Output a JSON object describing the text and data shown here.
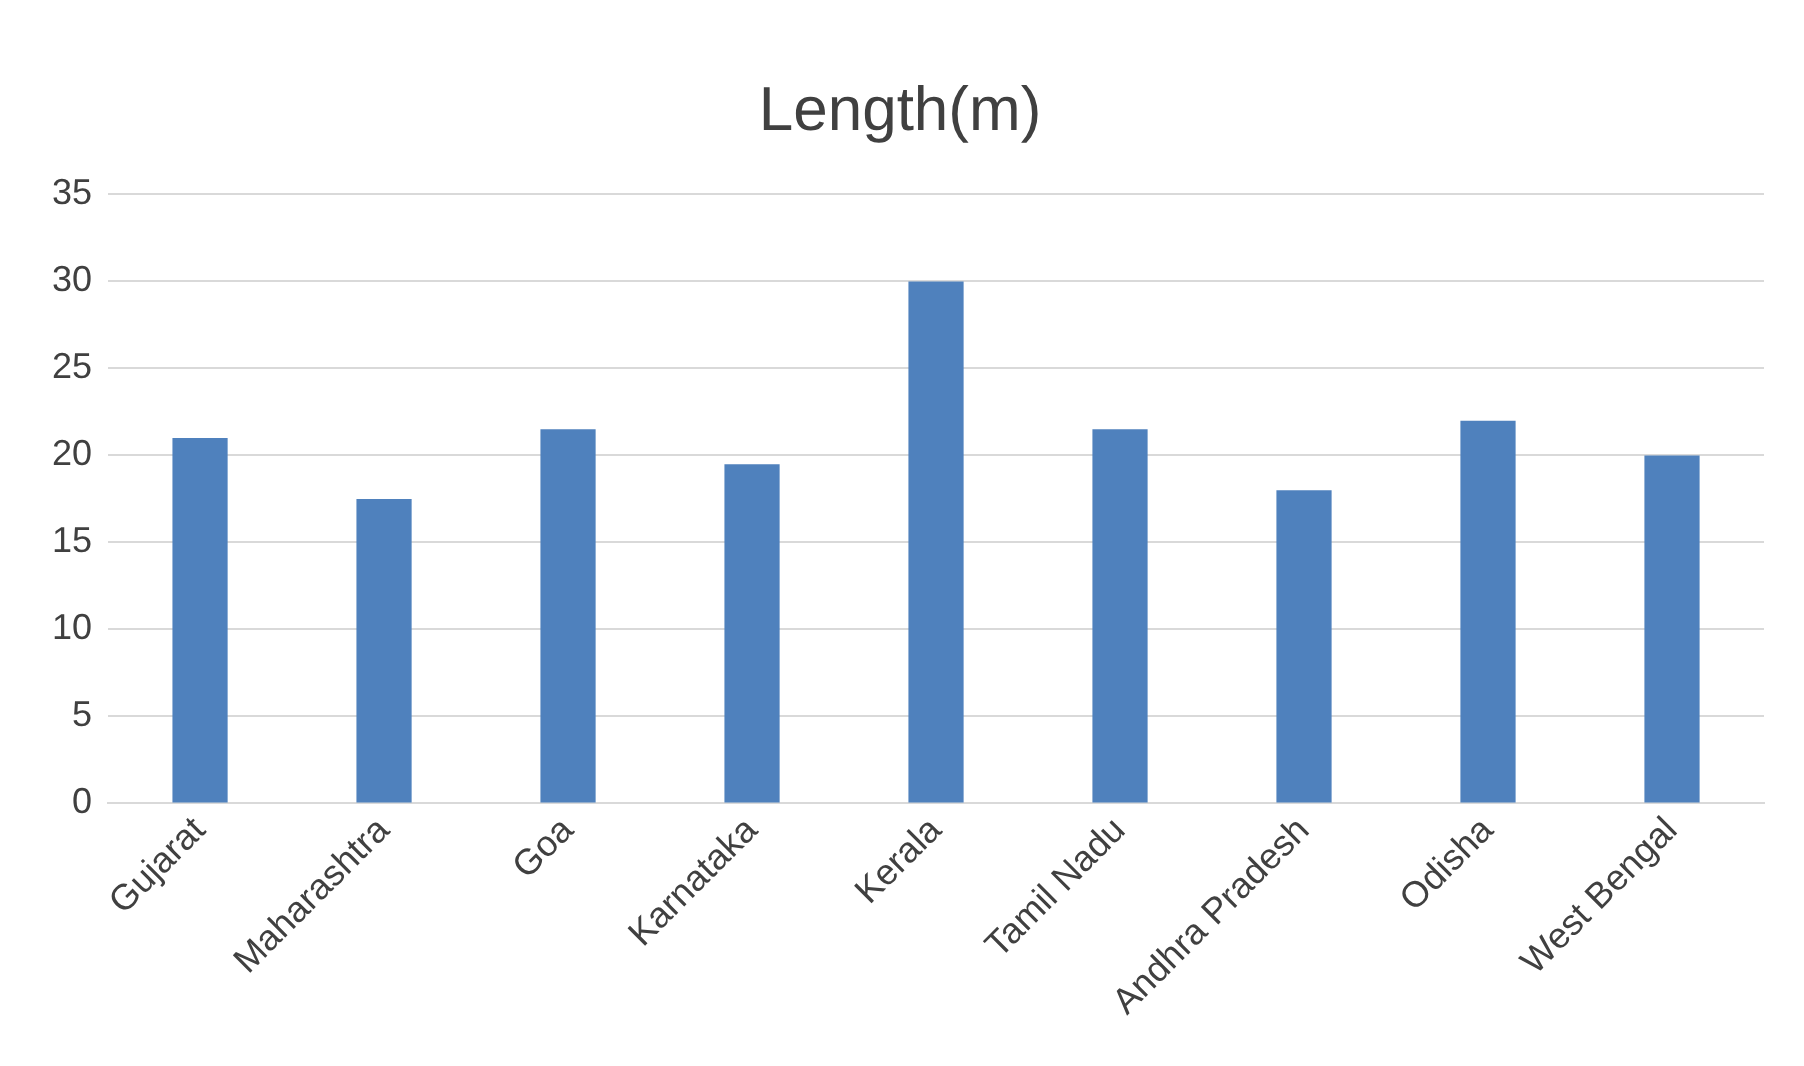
{
  "chart_data": {
    "type": "bar",
    "title": "Length(m)",
    "categories": [
      "Gujarat",
      "Maharashtra",
      "Goa",
      "Karnataka",
      "Kerala",
      "Tamil Nadu",
      "Andhra Pradesh",
      "Odisha",
      "West Bengal"
    ],
    "values": [
      21,
      17.5,
      21.5,
      19.5,
      30,
      21.5,
      18,
      22,
      20
    ],
    "color": "#4f81bd",
    "ylim": [
      0,
      35
    ],
    "yticks": [
      0,
      5,
      10,
      15,
      20,
      25,
      30,
      35
    ],
    "grid": "y",
    "legend": false
  }
}
